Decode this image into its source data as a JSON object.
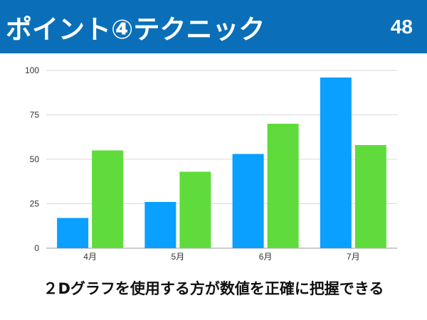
{
  "header": {
    "title": "ポイント④テクニック",
    "page_number": "48"
  },
  "caption": "２Dグラフを使用する方が数値を正確に把握できる",
  "colors": {
    "header_bg": "#0a6fb8",
    "series_blue": "#0aa0ff",
    "series_green": "#5fdc3c",
    "grid": "#d9d9d9"
  },
  "chart_data": {
    "type": "bar",
    "categories": [
      "4月",
      "5月",
      "6月",
      "7月"
    ],
    "series": [
      {
        "values": [
          17,
          26,
          53,
          96
        ],
        "color": "#0aa0ff"
      },
      {
        "values": [
          55,
          43,
          70,
          58
        ],
        "color": "#5fdc3c"
      }
    ],
    "ylim": [
      0,
      100
    ],
    "yticks": [
      0,
      25,
      50,
      75,
      100
    ],
    "grid": true,
    "legend": "none"
  }
}
